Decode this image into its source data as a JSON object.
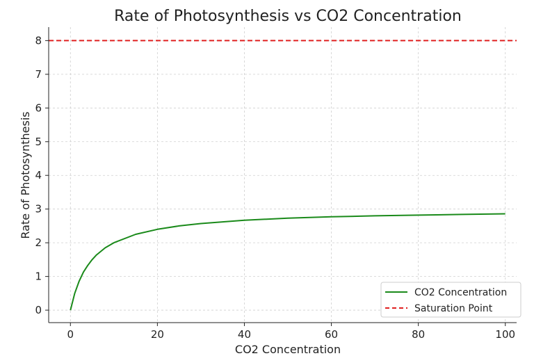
{
  "chart_data": {
    "type": "line",
    "title": "Rate of Photosynthesis vs CO2 Concentration",
    "xlabel": "CO2 Concentration",
    "ylabel": "Rate of Photosynthesis",
    "xlim": [
      -5,
      102.6
    ],
    "ylim": [
      -0.37,
      8.4
    ],
    "xticks": [
      0,
      20,
      40,
      60,
      80,
      100
    ],
    "yticks": [
      0,
      1,
      2,
      3,
      4,
      5,
      6,
      7,
      8
    ],
    "grid": true,
    "legend_position": "bottom-right",
    "series": [
      {
        "name": "CO2 Concentration",
        "color": "#1a8a1a",
        "style": "solid",
        "x": [
          0,
          1,
          2,
          3,
          4,
          5,
          6,
          8,
          10,
          15,
          20,
          25,
          30,
          40,
          50,
          60,
          70,
          80,
          90,
          100
        ],
        "y": [
          0,
          0.5,
          0.86,
          1.13,
          1.33,
          1.5,
          1.64,
          1.85,
          2.0,
          2.25,
          2.4,
          2.5,
          2.57,
          2.67,
          2.73,
          2.77,
          2.8,
          2.82,
          2.84,
          2.86
        ]
      },
      {
        "name": "Saturation Point",
        "color": "#e02020",
        "style": "dashed",
        "hline": 8
      }
    ]
  }
}
